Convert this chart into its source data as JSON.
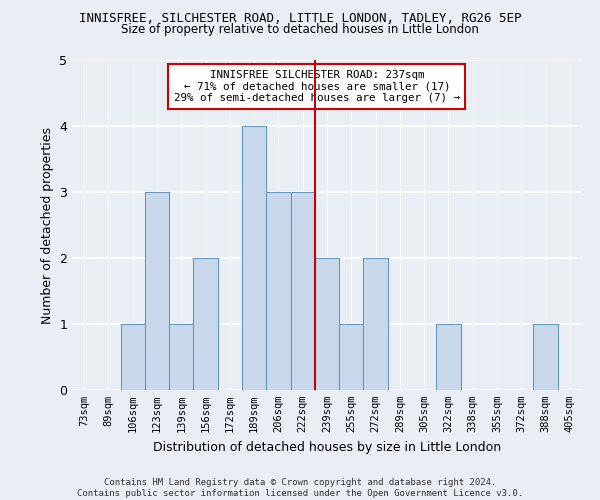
{
  "title1": "INNISFREE, SILCHESTER ROAD, LITTLE LONDON, TADLEY, RG26 5EP",
  "title2": "Size of property relative to detached houses in Little London",
  "xlabel": "Distribution of detached houses by size in Little London",
  "ylabel": "Number of detached properties",
  "footer": "Contains HM Land Registry data © Crown copyright and database right 2024.\nContains public sector information licensed under the Open Government Licence v3.0.",
  "bin_labels": [
    "73sqm",
    "89sqm",
    "106sqm",
    "123sqm",
    "139sqm",
    "156sqm",
    "172sqm",
    "189sqm",
    "206sqm",
    "222sqm",
    "239sqm",
    "255sqm",
    "272sqm",
    "289sqm",
    "305sqm",
    "322sqm",
    "338sqm",
    "355sqm",
    "372sqm",
    "388sqm",
    "405sqm"
  ],
  "bar_values": [
    0,
    0,
    1,
    3,
    1,
    2,
    0,
    4,
    3,
    3,
    2,
    1,
    2,
    0,
    0,
    1,
    0,
    0,
    0,
    1,
    0
  ],
  "bar_color": "#c8d8ea",
  "bar_edge_color": "#6699bb",
  "vline_x": 9.5,
  "vline_color": "#cc0000",
  "annotation_title": "INNISFREE SILCHESTER ROAD: 237sqm",
  "annotation_line1": "← 71% of detached houses are smaller (17)",
  "annotation_line2": "29% of semi-detached houses are larger (7) →",
  "annotation_box_color": "#cc0000",
  "ylim": [
    0,
    5
  ],
  "yticks": [
    0,
    1,
    2,
    3,
    4,
    5
  ],
  "background_color": "#e8eef4"
}
